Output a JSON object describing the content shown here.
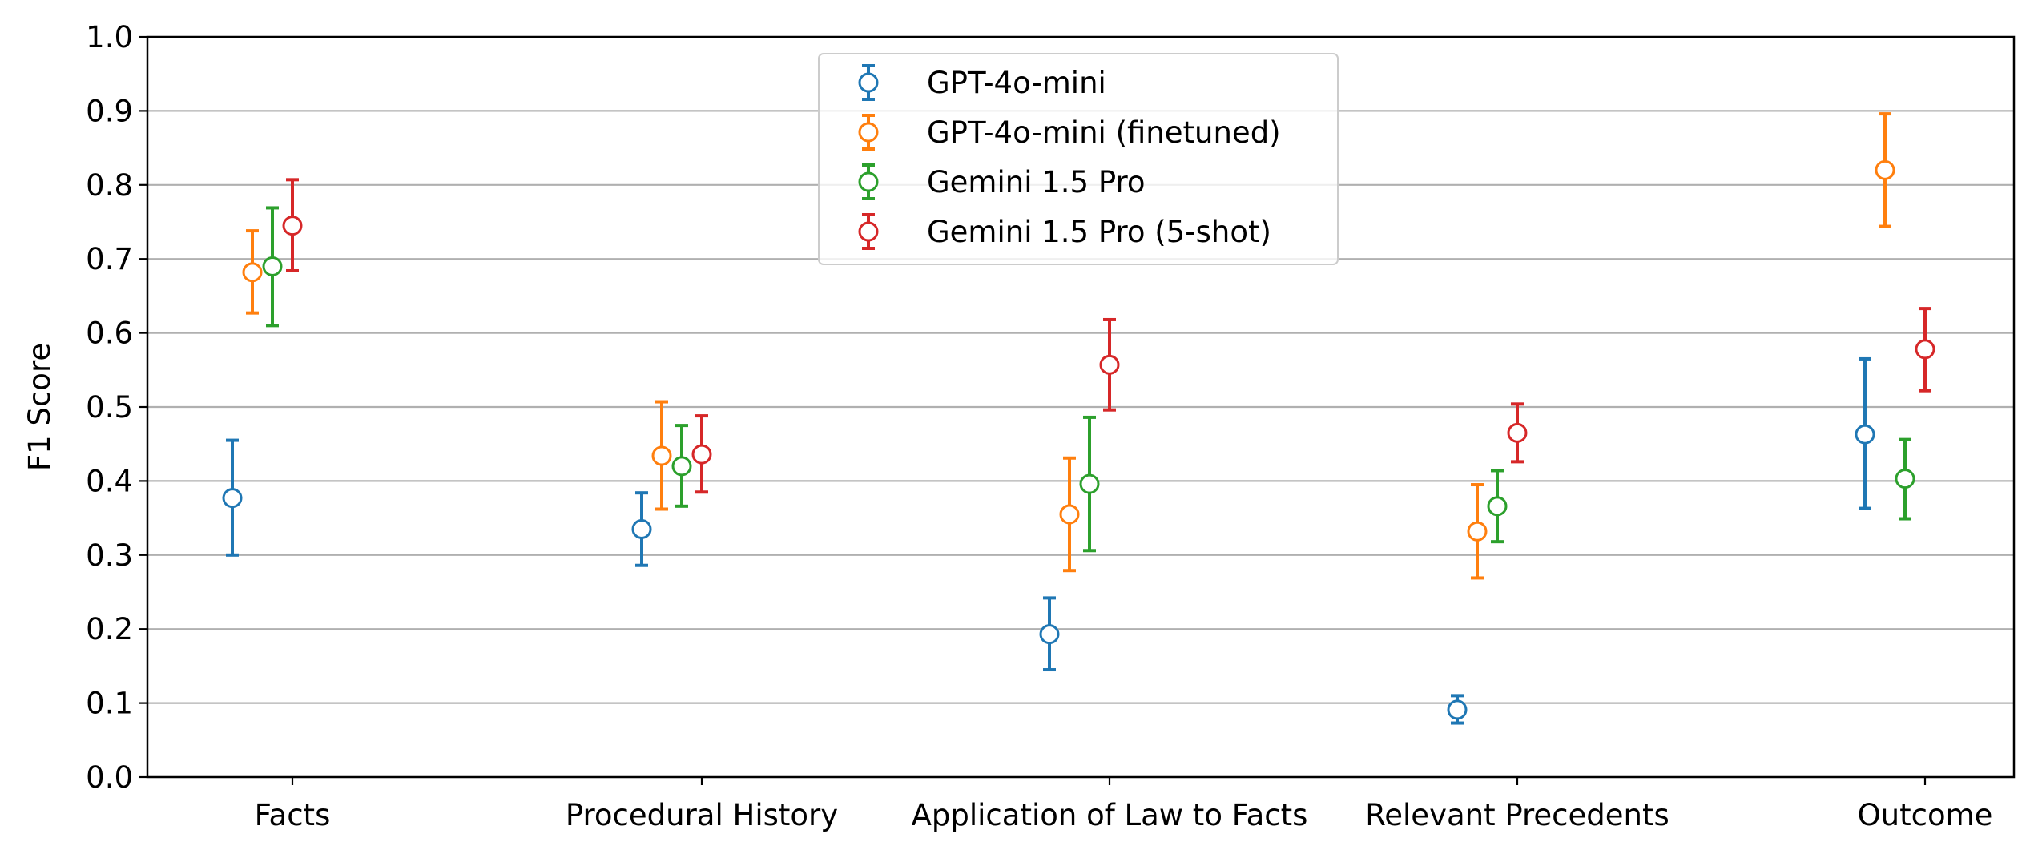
{
  "chart_data": {
    "type": "scatter",
    "ylabel": "F1 Score",
    "ylim": [
      0.0,
      1.0
    ],
    "y_ticks": [
      "0.0",
      "0.1",
      "0.2",
      "0.3",
      "0.4",
      "0.5",
      "0.6",
      "0.7",
      "0.8",
      "0.9",
      "1.0"
    ],
    "grid": "horizontal",
    "legend_position": "top-center",
    "categories": [
      "Facts",
      "Procedural History",
      "Application of Law to Facts",
      "Relevant Precedents",
      "Outcome"
    ],
    "series": [
      {
        "name": "GPT-4o-mini",
        "color": "#1f77b4",
        "values": [
          0.377,
          0.335,
          0.193,
          0.091,
          0.463
        ],
        "err_low": [
          0.3,
          0.286,
          0.145,
          0.073,
          0.363
        ],
        "err_high": [
          0.455,
          0.384,
          0.242,
          0.11,
          0.565
        ]
      },
      {
        "name": "GPT-4o-mini (finetuned)",
        "color": "#ff7f0e",
        "values": [
          0.682,
          0.434,
          0.355,
          0.332,
          0.82
        ],
        "err_low": [
          0.627,
          0.362,
          0.279,
          0.269,
          0.744
        ],
        "err_high": [
          0.738,
          0.507,
          0.431,
          0.395,
          0.896
        ]
      },
      {
        "name": "Gemini 1.5 Pro",
        "color": "#2ca02c",
        "values": [
          0.69,
          0.42,
          0.396,
          0.366,
          0.403
        ],
        "err_low": [
          0.61,
          0.366,
          0.306,
          0.318,
          0.349
        ],
        "err_high": [
          0.769,
          0.475,
          0.486,
          0.414,
          0.456
        ]
      },
      {
        "name": "Gemini 1.5 Pro (5-shot)",
        "color": "#d62728",
        "values": [
          0.745,
          0.436,
          0.557,
          0.465,
          0.578
        ],
        "err_low": [
          0.684,
          0.385,
          0.496,
          0.426,
          0.522
        ],
        "err_high": [
          0.807,
          0.488,
          0.618,
          0.504,
          0.633
        ]
      }
    ]
  }
}
